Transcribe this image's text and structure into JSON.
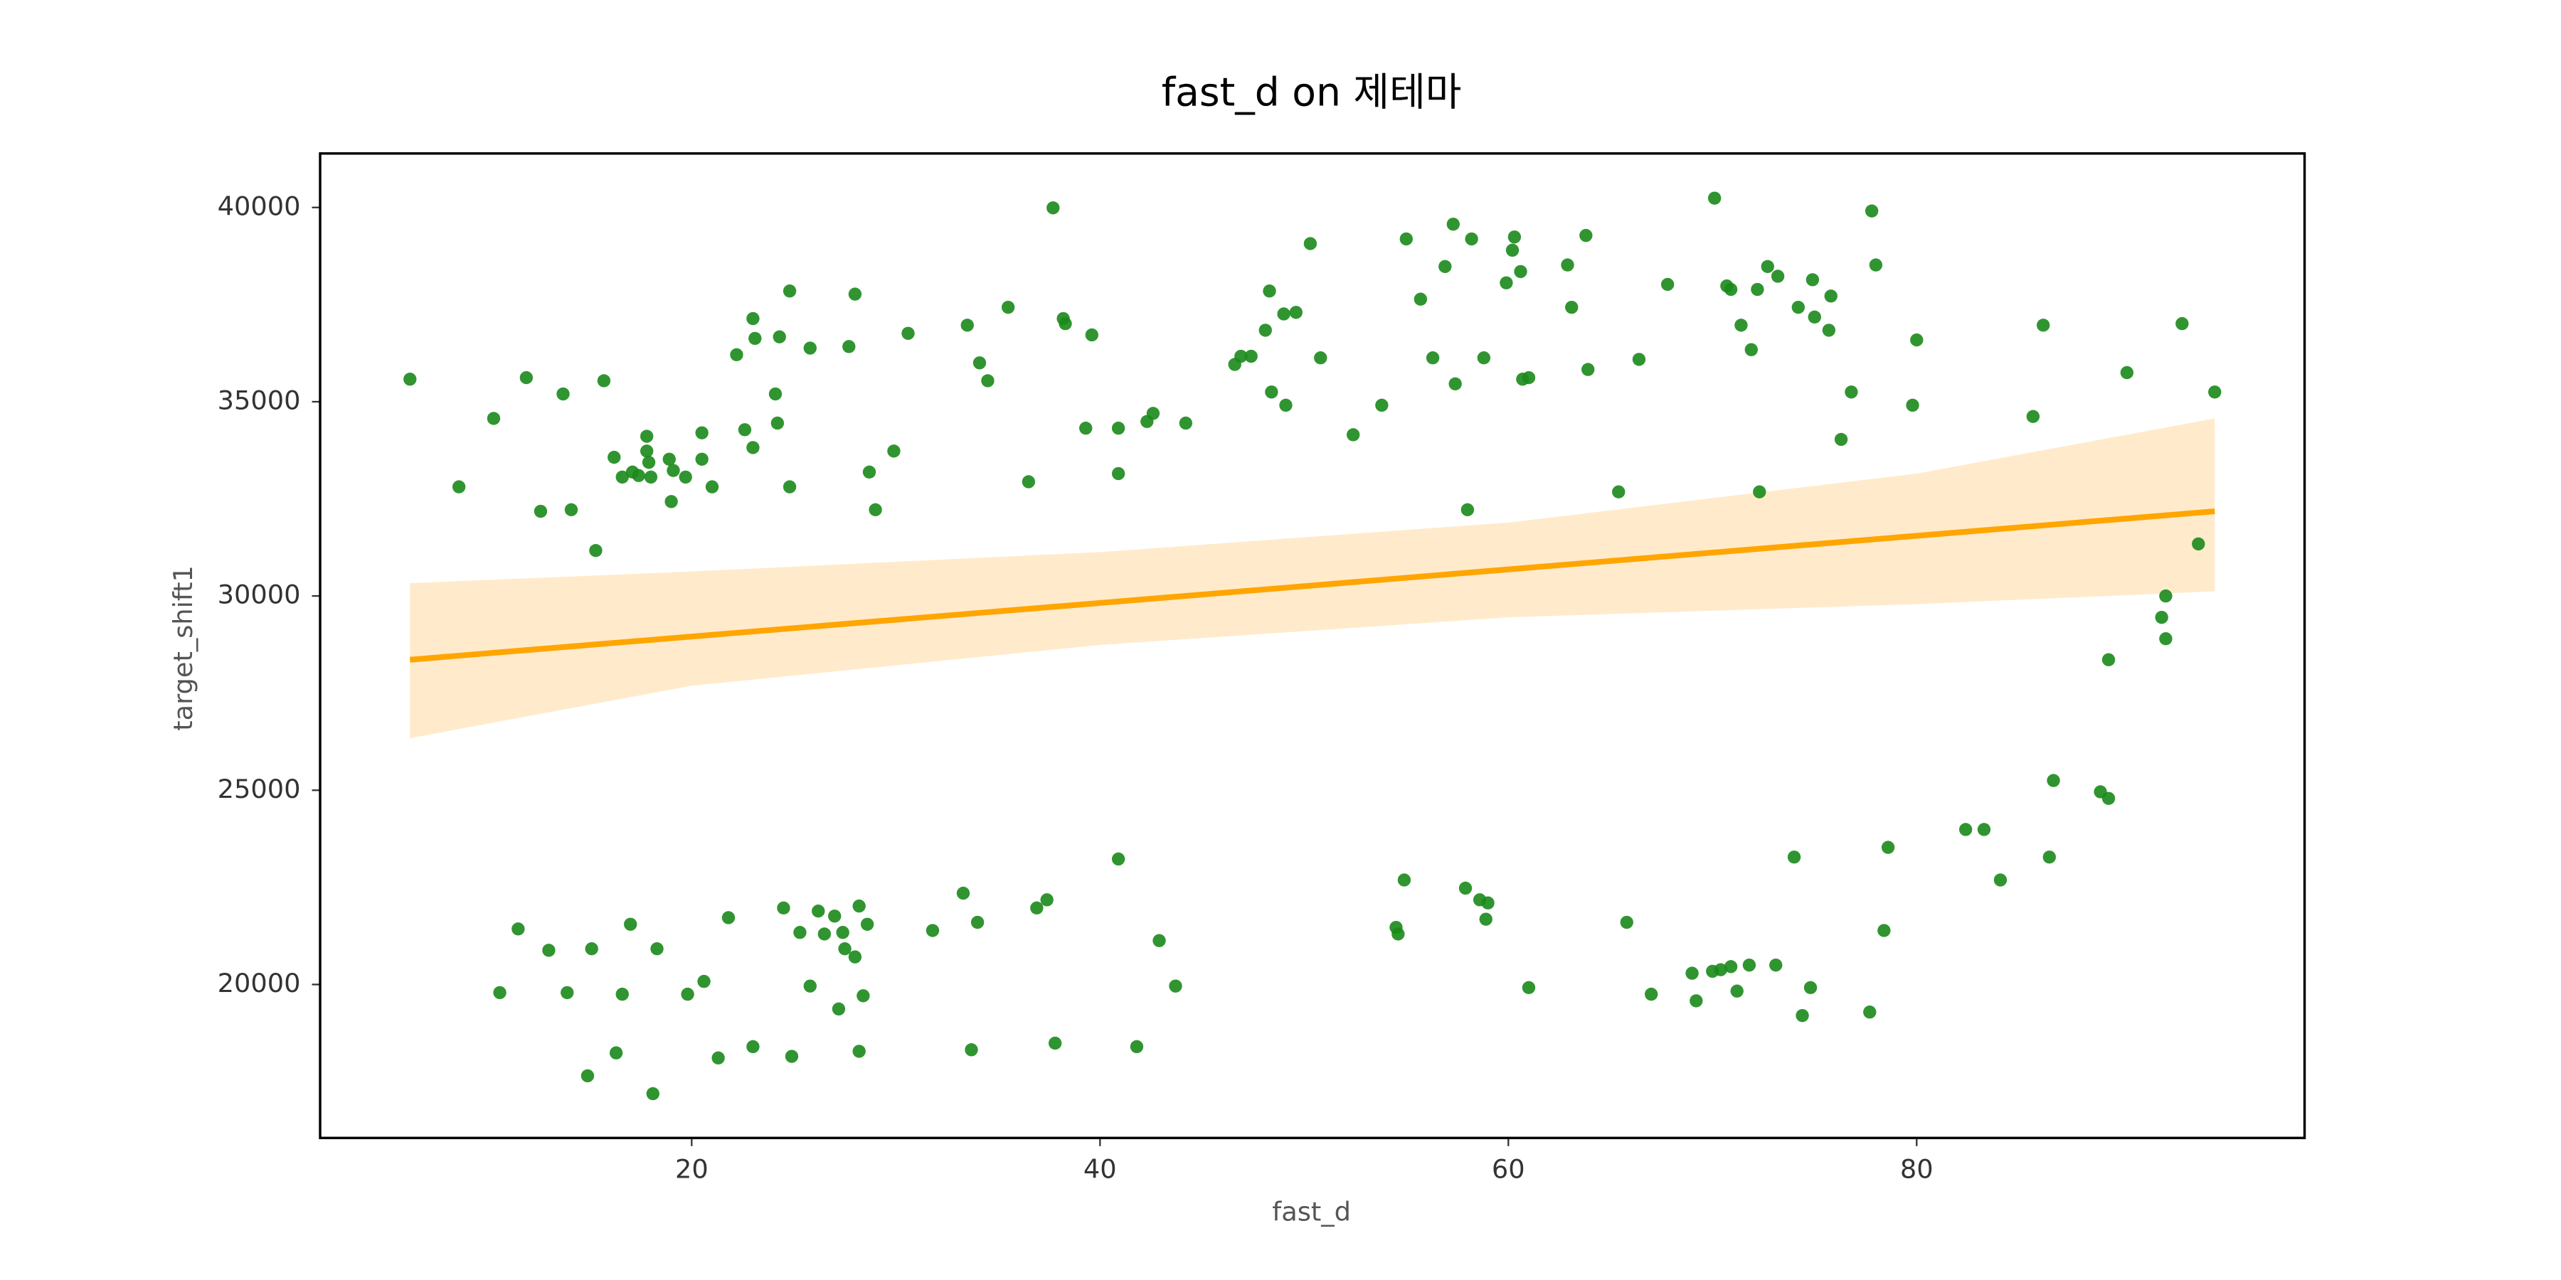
{
  "chart_data": {
    "type": "scatter",
    "title": "fast_d on 제테마",
    "x_label": "fast_d",
    "y_label": "target_shift1",
    "xlim": [
      1.8,
      99.0
    ],
    "ylim": [
      16050,
      41390
    ],
    "xticks": [
      20,
      40,
      60,
      80
    ],
    "yticks": [
      20000,
      25000,
      30000,
      35000,
      40000
    ],
    "grid": false,
    "color": "#1a8a1a",
    "x": [
      6.2,
      8.6,
      10.3,
      11.9,
      12.6,
      13.7,
      14.1,
      15.3,
      15.7,
      16.2,
      16.6,
      17.1,
      17.4,
      17.8,
      17.8,
      17.9,
      18.0,
      18.9,
      19.0,
      19.1,
      19.7,
      20.5,
      20.5,
      21.0,
      22.2,
      22.6,
      23.0,
      23.0,
      23.1,
      24.1,
      24.2,
      24.3,
      24.8,
      24.8,
      25.8,
      27.7,
      28.0,
      28.7,
      29.0,
      29.9,
      30.6,
      33.5,
      34.1,
      34.5,
      35.5,
      36.5,
      37.7,
      38.2,
      38.3,
      39.3,
      39.6,
      40.9,
      40.9,
      42.3,
      42.6,
      44.2,
      46.6,
      46.9,
      47.4,
      48.1,
      48.3,
      48.4,
      49.0,
      49.1,
      49.6,
      50.3,
      50.8,
      52.4,
      53.8,
      55.0,
      55.7,
      56.9,
      56.3,
      57.3,
      57.4,
      58.2,
      58.0,
      58.8,
      59.9,
      60.2,
      60.3,
      60.6,
      60.7,
      61.0,
      62.9,
      63.1,
      63.8,
      63.9,
      65.4,
      66.4,
      67.8,
      70.1,
      70.7,
      70.9,
      71.4,
      71.9,
      72.2,
      72.3,
      72.7,
      73.2,
      74.2,
      74.9,
      75.0,
      75.7,
      75.8,
      76.3,
      76.8,
      77.8,
      78.0,
      79.8,
      80.0,
      85.7,
      86.2,
      90.3,
      93.0,
      94.6,
      93.8,
      92.2,
      92.0,
      92.2,
      89.4,
      89.0,
      89.4,
      86.7,
      86.5,
      83.3,
      82.4,
      84.1,
      78.6,
      78.4,
      74.0,
      77.7,
      74.8,
      74.4,
      73.1,
      71.8,
      71.2,
      70.9,
      70.4,
      70.0,
      69.2,
      69.0,
      67.0,
      65.8,
      61.0,
      58.9,
      59.0,
      58.6,
      57.9,
      54.9,
      54.6,
      54.5,
      42.9,
      43.7,
      40.9,
      41.8,
      37.8,
      37.4,
      36.9,
      34.0,
      33.3,
      33.7,
      31.8,
      28.6,
      28.2,
      28.4,
      28.0,
      27.5,
      27.4,
      27.0,
      26.5,
      26.2,
      25.8,
      25.3,
      24.5,
      24.9,
      28.2,
      27.2,
      23.0,
      21.8,
      21.3,
      20.6,
      19.8,
      18.3,
      17.0,
      16.6,
      16.3,
      15.1,
      14.9,
      13.0,
      11.5,
      10.6,
      13.9,
      18.1
    ],
    "y": [
      35580,
      32810,
      34570,
      35620,
      32180,
      35200,
      32220,
      31170,
      35540,
      33570,
      33060,
      33190,
      33100,
      33730,
      34110,
      33440,
      33060,
      33520,
      32430,
      33230,
      33060,
      34200,
      33520,
      32810,
      36210,
      34280,
      37140,
      33820,
      36630,
      35200,
      34450,
      36670,
      37850,
      32810,
      36380,
      36420,
      37770,
      33190,
      32220,
      33730,
      36760,
      36970,
      36000,
      35540,
      37430,
      32940,
      39990,
      37140,
      37010,
      34320,
      36720,
      34320,
      33150,
      34490,
      34700,
      34450,
      35960,
      36170,
      36170,
      36840,
      37850,
      35250,
      37260,
      34910,
      37300,
      39070,
      36130,
      34150,
      34910,
      39190,
      37640,
      38480,
      36130,
      39570,
      35460,
      39190,
      32220,
      36130,
      38060,
      38900,
      39240,
      38350,
      35580,
      35620,
      38520,
      37430,
      39280,
      35830,
      32680,
      36090,
      38020,
      40240,
      37980,
      37890,
      36970,
      36340,
      37890,
      32680,
      38480,
      38230,
      37430,
      38140,
      37180,
      36840,
      37720,
      34030,
      35250,
      39910,
      38520,
      34910,
      36590,
      34620,
      36970,
      35750,
      37010,
      35250,
      31340,
      30000,
      29450,
      28900,
      28360,
      24960,
      24790,
      25250,
      23280,
      23990,
      23990,
      22690,
      23530,
      21390,
      23280,
      19290,
      19920,
      19200,
      20500,
      20500,
      19830,
      20460,
      20380,
      20340,
      19580,
      20290,
      19750,
      21600,
      19920,
      21680,
      22100,
      22180,
      22480,
      22690,
      21300,
      21470,
      21130,
      19960,
      23230,
      18400,
      18490,
      22180,
      21970,
      21600,
      22350,
      18320,
      21390,
      21550,
      22020,
      19710,
      20710,
      20920,
      21340,
      21760,
      21300,
      21890,
      19960,
      21340,
      21970,
      18150,
      18280,
      19370,
      18400,
      21720,
      18110,
      20080,
      19750,
      20920,
      21550,
      19750,
      18240,
      20920,
      17650,
      20880,
      21430,
      19790,
      19790,
      17190
    ],
    "regression": {
      "x": [
        6.2,
        94.6
      ],
      "y": [
        28360,
        32180
      ],
      "color": "#ffa500"
    },
    "confidence_band": {
      "x": [
        6.2,
        20,
        40,
        60,
        80,
        94.6
      ],
      "upper": [
        30330,
        30630,
        31130,
        31890,
        33150,
        34570
      ],
      "lower": [
        26340,
        27690,
        28740,
        29450,
        29790,
        30120
      ],
      "color": "#ffebcc"
    }
  }
}
